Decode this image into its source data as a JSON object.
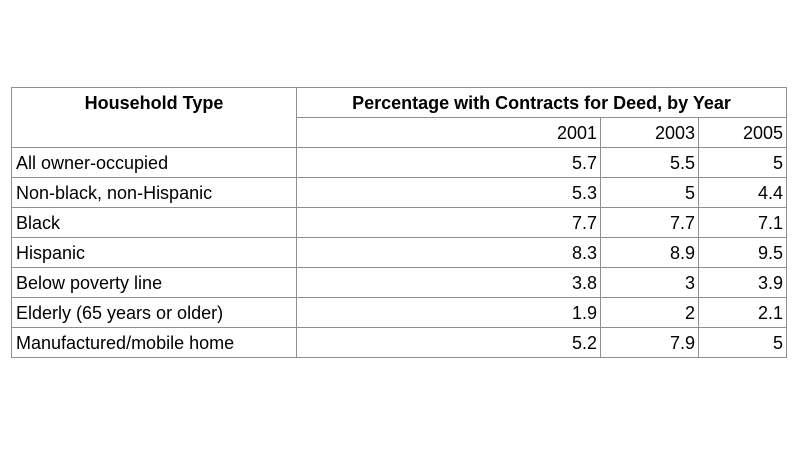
{
  "chart_data": {
    "type": "table",
    "row_header": "Household Type",
    "column_group_header": "Percentage with Contracts for Deed, by Year",
    "columns": [
      "2001",
      "2003",
      "2005"
    ],
    "rows": [
      {
        "label": "All owner-occupied",
        "values": [
          "5.7",
          "5.5",
          "5"
        ]
      },
      {
        "label": "Non-black, non-Hispanic",
        "values": [
          "5.3",
          "5",
          "4.4"
        ]
      },
      {
        "label": "Black",
        "values": [
          "7.7",
          "7.7",
          "7.1"
        ]
      },
      {
        "label": "Hispanic",
        "values": [
          "8.3",
          "8.9",
          "9.5"
        ]
      },
      {
        "label": "Below poverty line",
        "values": [
          "3.8",
          "3",
          "3.9"
        ]
      },
      {
        "label": "Elderly (65 years or older)",
        "values": [
          "1.9",
          "2",
          "2.1"
        ]
      },
      {
        "label": "Manufactured/mobile home",
        "values": [
          "5.2",
          "7.9",
          "5"
        ]
      }
    ]
  }
}
